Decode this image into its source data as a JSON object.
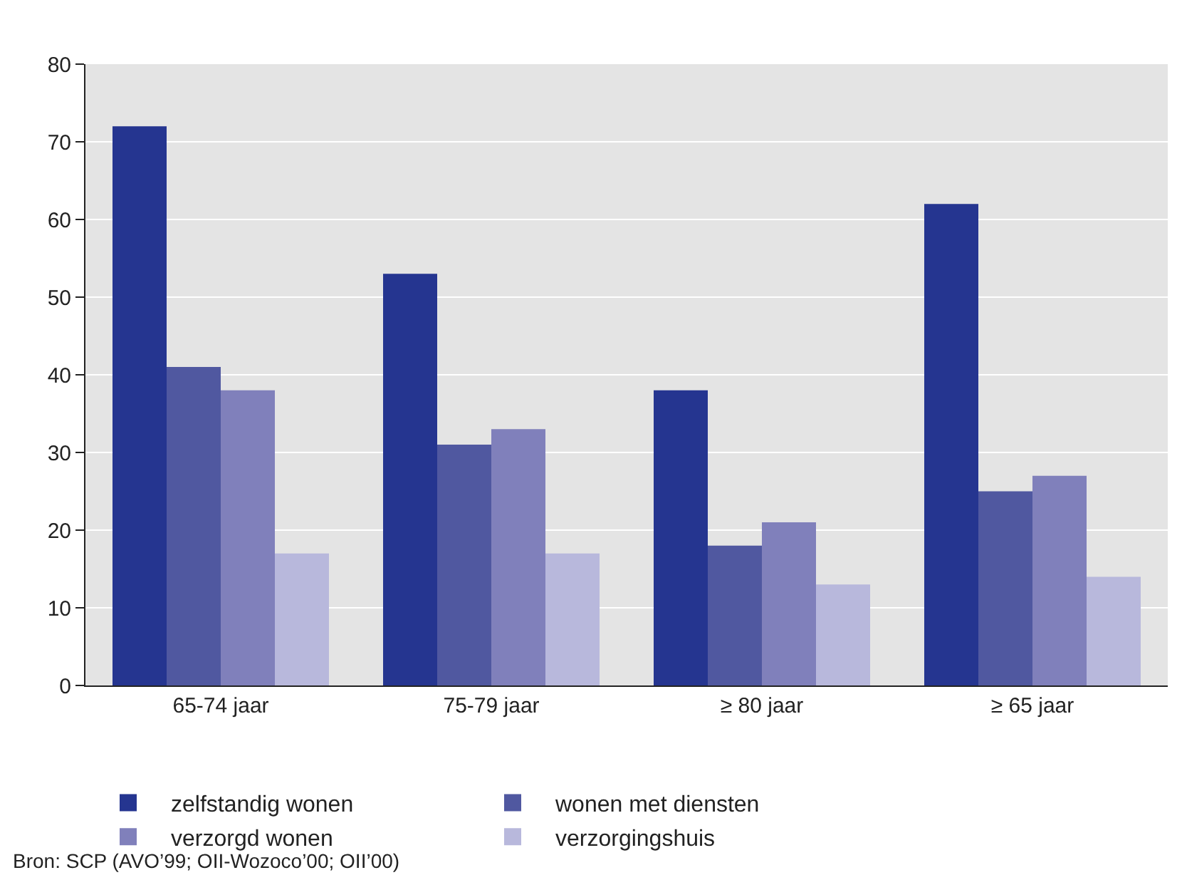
{
  "chart_data": {
    "type": "bar",
    "categories": [
      "65-74 jaar",
      "75-79 jaar",
      "≥ 80 jaar",
      "≥ 65 jaar"
    ],
    "series": [
      {
        "name": "zelfstandig wonen",
        "color": "#253590",
        "values": [
          72,
          53,
          38,
          62
        ]
      },
      {
        "name": "wonen met diensten",
        "color": "#5058a0",
        "values": [
          41,
          31,
          18,
          25
        ]
      },
      {
        "name": "verzorgd wonen",
        "color": "#8080bb",
        "values": [
          38,
          33,
          21,
          27
        ]
      },
      {
        "name": "verzorgingshuis",
        "color": "#b8b8dc",
        "values": [
          17,
          17,
          13,
          14
        ]
      }
    ],
    "ylim": [
      0,
      80
    ],
    "yticks": [
      0,
      10,
      20,
      30,
      40,
      50,
      60,
      70,
      80
    ],
    "grid": "y",
    "legend": "bottom",
    "annotations": [
      "Bron: SCP (AVO’99; OII-Wozoco’00; OII’00)"
    ]
  }
}
